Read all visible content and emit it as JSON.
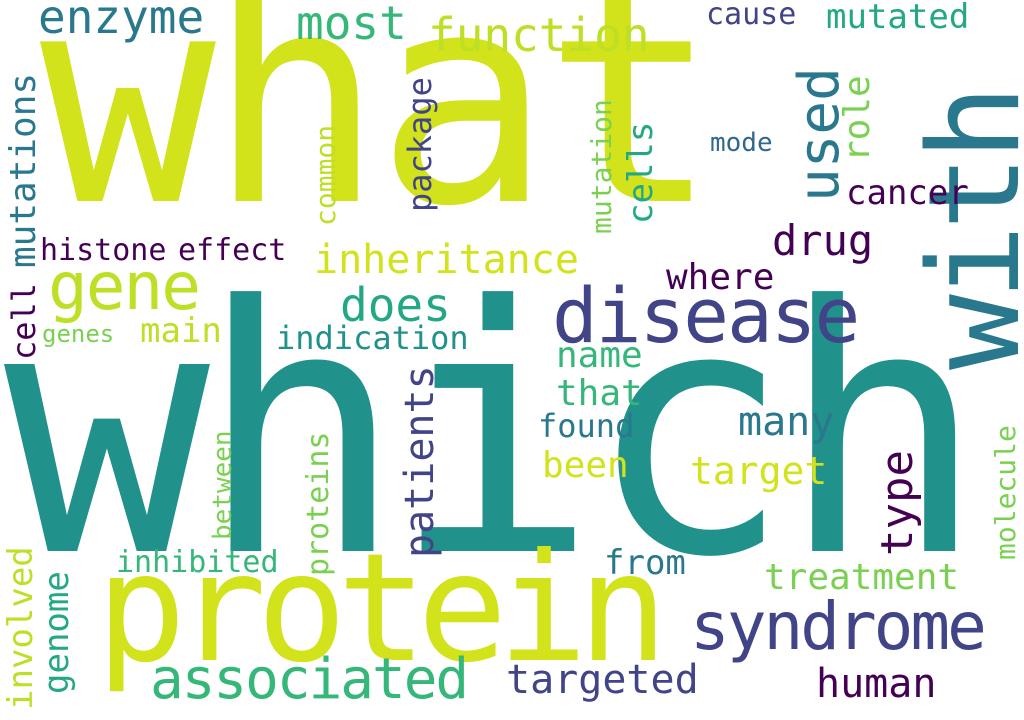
{
  "palette": {
    "yellow_green": "#d2e21b",
    "lime": "#bddf26",
    "light_green": "#7ad151",
    "green": "#35b779",
    "teal_green": "#22a884",
    "teal": "#21918c",
    "blue_teal": "#2a788e",
    "steel_blue": "#31688e",
    "blue": "#3b528b",
    "indigo": "#414487",
    "dark_purple": "#440154"
  },
  "words": {
    "what": "what",
    "which": "which",
    "protein": "protein",
    "with": "with",
    "disease": "disease",
    "syndrome": "syndrome",
    "gene": "gene",
    "associated": "associated",
    "used": "used",
    "function": "function",
    "enzyme": "enzyme",
    "most": "most",
    "mutated": "mutated",
    "cause": "cause",
    "role": "role",
    "mode": "mode",
    "cancer": "cancer",
    "drug": "drug",
    "inheritance": "inheritance",
    "histone": "histone",
    "effect": "effect",
    "does": "does",
    "where": "where",
    "name": "name",
    "that": "that",
    "many": "many",
    "found": "found",
    "been": "been",
    "target": "target",
    "indication": "indication",
    "main": "main",
    "genes": "genes",
    "patients": "patients",
    "type": "type",
    "treatment": "treatment",
    "from": "from",
    "inhibited": "inhibited",
    "targeted": "targeted",
    "human": "human",
    "mutations": "mutations",
    "cell": "cell",
    "package": "package",
    "common": "common",
    "mutation": "mutation",
    "cells": "cells",
    "between": "between",
    "proteins": "proteins",
    "involved": "involved",
    "genome": "genome",
    "molecule": "molecule"
  }
}
